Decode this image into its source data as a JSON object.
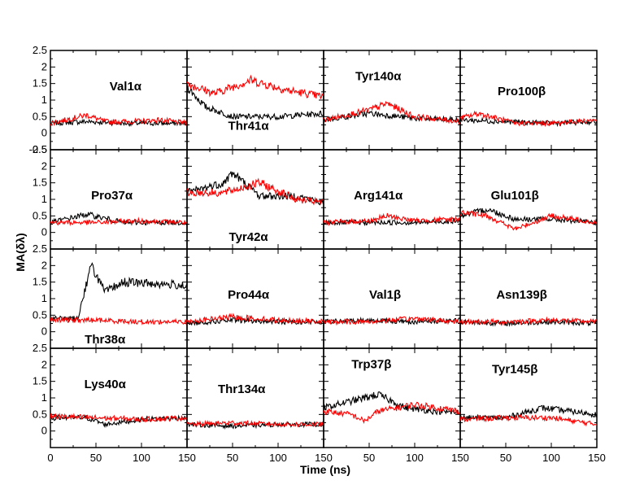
{
  "chart_data": {
    "type": "line",
    "layout": {
      "rows": 4,
      "cols": 4
    },
    "xlabel": "Time (ns)",
    "ylabel": "MA(δλ)",
    "xlim": [
      0,
      150
    ],
    "ylim": [
      -0.5,
      2.5
    ],
    "xticks": [
      0,
      50,
      100,
      150
    ],
    "xtick_labels": [
      "0",
      "50",
      "100",
      "150"
    ],
    "yticks": [
      -0.5,
      0,
      0.5,
      1,
      1.5,
      2,
      2.5
    ],
    "ytick_labels": [
      "-0.5",
      "0",
      "0.5",
      "1",
      "1.5",
      "2",
      "2.5"
    ],
    "series_colors": {
      "black": "#000000",
      "red": "#ff0000"
    },
    "panels": [
      {
        "label": "Val1α",
        "label_pos": [
          0.55,
          0.6
        ],
        "black": [
          [
            0,
            0.3
          ],
          [
            40,
            0.35
          ],
          [
            80,
            0.3
          ],
          [
            120,
            0.3
          ],
          [
            150,
            0.3
          ]
        ],
        "red": [
          [
            0,
            0.3
          ],
          [
            40,
            0.55
          ],
          [
            60,
            0.35
          ],
          [
            90,
            0.35
          ],
          [
            120,
            0.4
          ],
          [
            150,
            0.3
          ]
        ]
      },
      {
        "label": "Thr41α",
        "label_pos": [
          0.45,
          0.2
        ],
        "black": [
          [
            0,
            1.4
          ],
          [
            20,
            0.8
          ],
          [
            50,
            0.5
          ],
          [
            100,
            0.5
          ],
          [
            150,
            0.6
          ]
        ],
        "red": [
          [
            0,
            1.5
          ],
          [
            30,
            1.2
          ],
          [
            70,
            1.6
          ],
          [
            110,
            1.3
          ],
          [
            150,
            1.1
          ]
        ]
      },
      {
        "label": "Tyr140α",
        "label_pos": [
          0.4,
          0.7
        ],
        "black": [
          [
            0,
            0.4
          ],
          [
            50,
            0.6
          ],
          [
            100,
            0.45
          ],
          [
            150,
            0.4
          ]
        ],
        "red": [
          [
            0,
            0.4
          ],
          [
            50,
            0.7
          ],
          [
            70,
            0.9
          ],
          [
            100,
            0.5
          ],
          [
            150,
            0.35
          ]
        ]
      },
      {
        "label": "Pro100β",
        "label_pos": [
          0.45,
          0.55
        ],
        "black": [
          [
            0,
            0.4
          ],
          [
            50,
            0.35
          ],
          [
            100,
            0.3
          ],
          [
            150,
            0.35
          ]
        ],
        "red": [
          [
            0,
            0.45
          ],
          [
            20,
            0.6
          ],
          [
            60,
            0.3
          ],
          [
            100,
            0.3
          ],
          [
            150,
            0.4
          ]
        ]
      },
      {
        "label": "Pro37α",
        "label_pos": [
          0.45,
          0.5
        ],
        "black": [
          [
            0,
            0.3
          ],
          [
            40,
            0.55
          ],
          [
            80,
            0.3
          ],
          [
            150,
            0.3
          ]
        ],
        "red": [
          [
            0,
            0.3
          ],
          [
            50,
            0.3
          ],
          [
            100,
            0.35
          ],
          [
            150,
            0.3
          ]
        ]
      },
      {
        "label": "Tyr42α",
        "label_pos": [
          0.45,
          0.08
        ],
        "black": [
          [
            0,
            1.2
          ],
          [
            40,
            1.5
          ],
          [
            50,
            1.8
          ],
          [
            80,
            1.1
          ],
          [
            120,
            1.1
          ],
          [
            150,
            0.9
          ]
        ],
        "red": [
          [
            0,
            1.2
          ],
          [
            40,
            1.2
          ],
          [
            80,
            1.5
          ],
          [
            120,
            1.0
          ],
          [
            150,
            0.9
          ]
        ]
      },
      {
        "label": "Arg141α",
        "label_pos": [
          0.4,
          0.5
        ],
        "black": [
          [
            0,
            0.3
          ],
          [
            50,
            0.3
          ],
          [
            100,
            0.3
          ],
          [
            150,
            0.35
          ]
        ],
        "red": [
          [
            0,
            0.3
          ],
          [
            50,
            0.35
          ],
          [
            70,
            0.5
          ],
          [
            100,
            0.35
          ],
          [
            150,
            0.4
          ]
        ]
      },
      {
        "label": "Glu101β",
        "label_pos": [
          0.4,
          0.5
        ],
        "black": [
          [
            0,
            0.5
          ],
          [
            30,
            0.7
          ],
          [
            60,
            0.4
          ],
          [
            100,
            0.4
          ],
          [
            150,
            0.3
          ]
        ],
        "red": [
          [
            0,
            0.6
          ],
          [
            30,
            0.5
          ],
          [
            60,
            0.1
          ],
          [
            100,
            0.5
          ],
          [
            150,
            0.3
          ]
        ]
      },
      {
        "label": "Thr38α",
        "label_pos": [
          0.4,
          0.05
        ],
        "black": [
          [
            0,
            0.4
          ],
          [
            30,
            0.4
          ],
          [
            40,
            1.5
          ],
          [
            45,
            2.0
          ],
          [
            60,
            1.2
          ],
          [
            80,
            1.5
          ],
          [
            150,
            1.4
          ]
        ],
        "red": [
          [
            0,
            0.35
          ],
          [
            50,
            0.35
          ],
          [
            100,
            0.3
          ],
          [
            150,
            0.3
          ]
        ]
      },
      {
        "label": "Pro44α",
        "label_pos": [
          0.45,
          0.5
        ],
        "black": [
          [
            0,
            0.25
          ],
          [
            50,
            0.35
          ],
          [
            100,
            0.3
          ],
          [
            150,
            0.3
          ]
        ],
        "red": [
          [
            0,
            0.3
          ],
          [
            50,
            0.45
          ],
          [
            100,
            0.35
          ],
          [
            150,
            0.3
          ]
        ]
      },
      {
        "label": "Val1β",
        "label_pos": [
          0.45,
          0.5
        ],
        "black": [
          [
            0,
            0.3
          ],
          [
            50,
            0.35
          ],
          [
            100,
            0.3
          ],
          [
            150,
            0.35
          ]
        ],
        "red": [
          [
            0,
            0.3
          ],
          [
            50,
            0.3
          ],
          [
            100,
            0.4
          ],
          [
            150,
            0.3
          ]
        ]
      },
      {
        "label": "Asn139β",
        "label_pos": [
          0.45,
          0.5
        ],
        "black": [
          [
            0,
            0.3
          ],
          [
            50,
            0.25
          ],
          [
            100,
            0.3
          ],
          [
            150,
            0.25
          ]
        ],
        "red": [
          [
            0,
            0.3
          ],
          [
            50,
            0.3
          ],
          [
            100,
            0.35
          ],
          [
            150,
            0.3
          ]
        ]
      },
      {
        "label": "Lys40α",
        "label_pos": [
          0.4,
          0.6
        ],
        "black": [
          [
            0,
            0.4
          ],
          [
            40,
            0.4
          ],
          [
            60,
            0.2
          ],
          [
            100,
            0.35
          ],
          [
            150,
            0.4
          ]
        ],
        "red": [
          [
            0,
            0.45
          ],
          [
            50,
            0.4
          ],
          [
            100,
            0.35
          ],
          [
            150,
            0.4
          ]
        ]
      },
      {
        "label": "Thr134α",
        "label_pos": [
          0.4,
          0.55
        ],
        "black": [
          [
            0,
            0.2
          ],
          [
            50,
            0.15
          ],
          [
            100,
            0.2
          ],
          [
            150,
            0.2
          ]
        ],
        "red": [
          [
            0,
            0.2
          ],
          [
            50,
            0.25
          ],
          [
            100,
            0.2
          ],
          [
            150,
            0.2
          ]
        ]
      },
      {
        "label": "Trp37β",
        "label_pos": [
          0.35,
          0.8
        ],
        "black": [
          [
            0,
            0.7
          ],
          [
            30,
            0.9
          ],
          [
            60,
            1.1
          ],
          [
            90,
            0.7
          ],
          [
            120,
            0.6
          ],
          [
            150,
            0.55
          ]
        ],
        "red": [
          [
            0,
            0.6
          ],
          [
            30,
            0.5
          ],
          [
            45,
            0.3
          ],
          [
            60,
            0.6
          ],
          [
            100,
            0.8
          ],
          [
            150,
            0.6
          ]
        ]
      },
      {
        "label": "Tyr145β",
        "label_pos": [
          0.4,
          0.75
        ],
        "black": [
          [
            0,
            0.4
          ],
          [
            50,
            0.4
          ],
          [
            90,
            0.7
          ],
          [
            120,
            0.6
          ],
          [
            150,
            0.5
          ]
        ],
        "red": [
          [
            0,
            0.35
          ],
          [
            50,
            0.4
          ],
          [
            100,
            0.4
          ],
          [
            150,
            0.2
          ]
        ]
      }
    ]
  }
}
